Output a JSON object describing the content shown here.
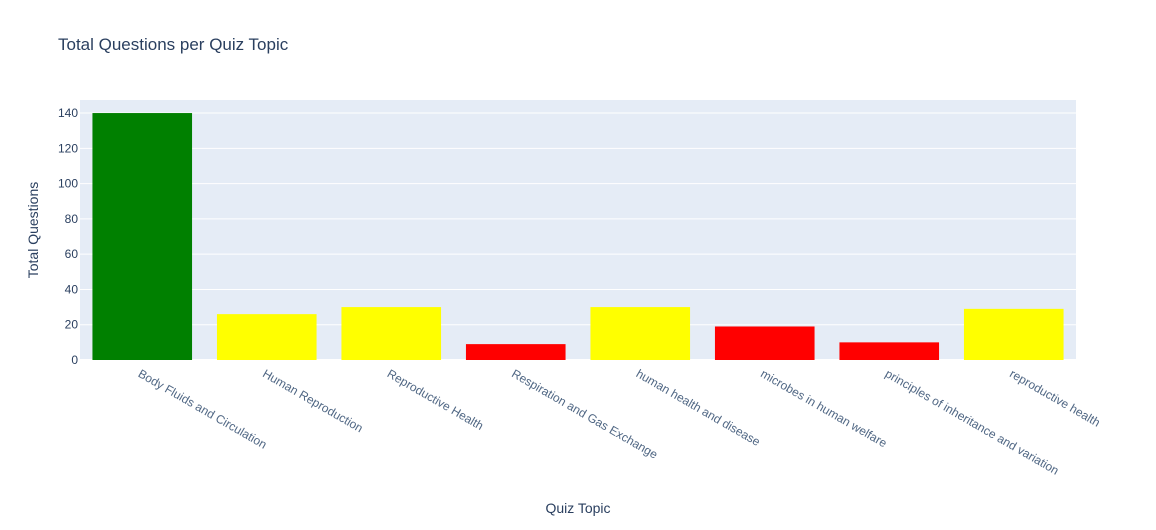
{
  "chart_data": {
    "type": "bar",
    "title": "Total Questions per Quiz Topic",
    "xlabel": "Quiz Topic",
    "ylabel": "Total Questions",
    "categories": [
      "Body Fluids and Circulation",
      "Human Reproduction",
      "Reproductive Health",
      "Respiration and Gas Exchange",
      "human health and disease",
      "microbes in human welfare",
      "principles of inheritance and variation",
      "reproductive health"
    ],
    "values": [
      140,
      26,
      30,
      9,
      30,
      19,
      10,
      29
    ],
    "bar_colors": [
      "#008000",
      "#ffff00",
      "#ffff00",
      "#ff0000",
      "#ffff00",
      "#ff0000",
      "#ff0000",
      "#ffff00"
    ],
    "ylim": [
      0,
      147.4
    ],
    "yticks": [
      0,
      20,
      40,
      60,
      80,
      100,
      120,
      140
    ],
    "grid": true,
    "legend": false,
    "colors": {
      "plot_background": "#e5ecf6",
      "gridline": "#ffffff",
      "text": "#2a3f5f",
      "tick_text": "#506784"
    }
  }
}
